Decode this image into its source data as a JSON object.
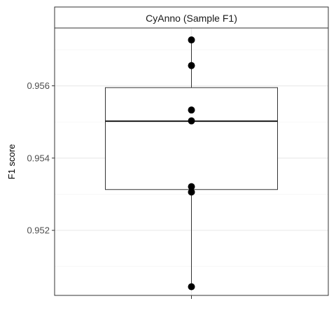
{
  "chart_data": {
    "type": "boxplot",
    "facet_label": "CyAnno (Sample F1)",
    "xlabel": "",
    "ylabel": "F1 score",
    "ylim": [
      0.9502,
      0.9576
    ],
    "y_ticks": [
      0.952,
      0.954,
      0.956
    ],
    "y_tick_labels": [
      "0.952",
      "0.954",
      "0.956"
    ],
    "y_minor_ticks": [
      0.951,
      0.953,
      0.955,
      0.957
    ],
    "categories": [
      ""
    ],
    "box": {
      "q1": 0.95313,
      "median": 0.95502,
      "q3": 0.95595,
      "whisker_low": 0.95044,
      "whisker_high": 0.95727
    },
    "points": [
      0.95727,
      0.95656,
      0.95533,
      0.95503,
      0.95321,
      0.95306,
      0.95044
    ],
    "grid": true,
    "legend": "none",
    "colors": {
      "panel_border": "#333333",
      "grid_major": "#ebebeb",
      "grid_minor": "#f5f5f5",
      "strip_bg": "#ffffff",
      "box_line": "#333333",
      "point": "#000000"
    }
  }
}
